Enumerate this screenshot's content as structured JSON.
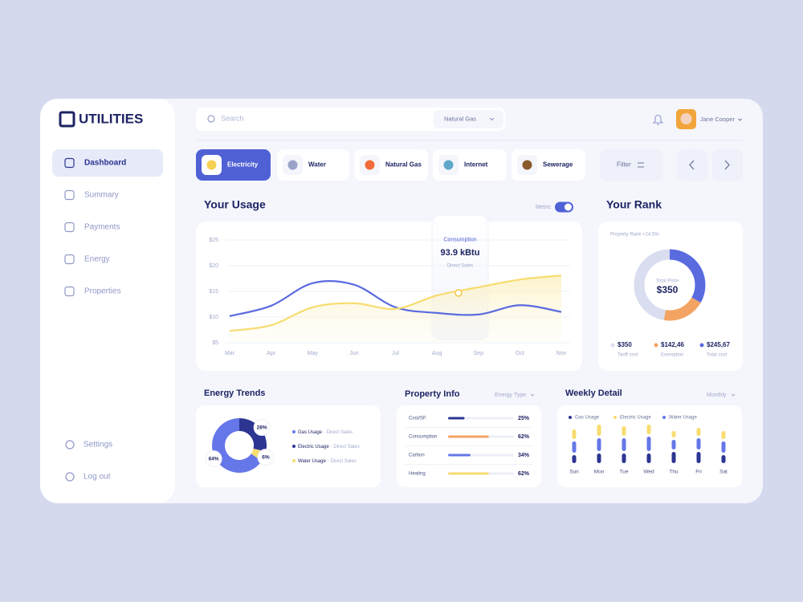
{
  "brand": "UTILITIES",
  "nav": [
    "Dashboard",
    "Summary",
    "Payments",
    "Energy",
    "Properties"
  ],
  "nav_footer": [
    "Settings",
    "Log out"
  ],
  "search": {
    "placeholder": "Search",
    "dropdown": "Natural Gas"
  },
  "user": {
    "name": "Jane Cooper"
  },
  "tabs": [
    "Electricity",
    "Water",
    "Natural Gas",
    "Internet",
    "Sewerage"
  ],
  "filter": "Filter",
  "usage": {
    "title": "Your Usage",
    "toggle": "Metric",
    "tooltip": {
      "title": "Consumption",
      "value": "93.9 kBtu",
      "subtitle": "Direct Sales"
    },
    "chart_data": {
      "type": "line",
      "categories": [
        "Mar",
        "Apr",
        "May",
        "Jun",
        "Jul",
        "Aug",
        "Sep",
        "Oct",
        "Nov"
      ],
      "series": [
        {
          "color": "#5a6be0",
          "values": [
            10.2,
            12.2,
            16.6,
            16.3,
            11.9,
            10.8,
            10.5,
            12.3,
            11.0
          ]
        },
        {
          "color": "#f7dc6f",
          "values": [
            7.3,
            8.4,
            11.9,
            12.7,
            11.6,
            14.2,
            15.8,
            17.3,
            18.1
          ]
        }
      ],
      "ylim": [
        5,
        25
      ],
      "yticks": [
        {
          "value": 25,
          "label": "$25"
        },
        {
          "value": 20,
          "label": "$20"
        },
        {
          "value": 15,
          "label": "$15"
        },
        {
          "value": 10,
          "label": "$10"
        },
        {
          "value": 5,
          "label": "$5"
        }
      ],
      "grid": true
    }
  },
  "rank": {
    "title": "Your Rank",
    "subtitle": "Property Rank +24.5%",
    "center_label": "Total Price",
    "center_value": "$350",
    "chart_data": {
      "type": "donut",
      "categories": [
        "Tariff cost",
        "Exemption",
        "Total cost"
      ],
      "values": [
        350,
        142.46,
        245.67
      ],
      "value_labels": [
        "$350",
        "$142,46",
        "$245,67"
      ],
      "colors": [
        "#d9ddef",
        "#f4a462",
        "#5a6be0"
      ]
    }
  },
  "trends": {
    "title": "Energy Trends",
    "chart_data": {
      "type": "donut",
      "categories": [
        "Gas Usage",
        "Electric Usage",
        "Water Usage"
      ],
      "legend_notes": [
        "- Direct Sales",
        "- Direct Sales",
        "- Direct Sales"
      ],
      "values": [
        64,
        28,
        6
      ],
      "value_labels": [
        "64%",
        "28%",
        "6%"
      ],
      "colors": [
        "#6577e8",
        "#2c3592",
        "#f7dc6f"
      ]
    }
  },
  "property": {
    "title": "Property Info",
    "menu": "Energy Type",
    "chart_data": {
      "type": "bar",
      "categories": [
        "Cost/SF",
        "Consumption",
        "Carbon",
        "Heating"
      ],
      "values": [
        25,
        62,
        34,
        62
      ],
      "value_labels": [
        "25%",
        "62%",
        "34%",
        "62%"
      ],
      "colors": [
        "#2c3592",
        "#f4a462",
        "#6577e8",
        "#f7dc6f"
      ],
      "xlim": [
        0,
        100
      ]
    }
  },
  "weekly": {
    "title": "Weekly Detail",
    "menu": "Monthly",
    "chart_data": {
      "type": "stacked-bar",
      "categories": [
        "Sun",
        "Mon",
        "Tue",
        "Wed",
        "Thu",
        "Fri",
        "Sat"
      ],
      "series": [
        {
          "name": "Gas Usage",
          "color": "#2c3592",
          "values": [
            10,
            12,
            12,
            12,
            14,
            14,
            10
          ]
        },
        {
          "name": "Electric Usage",
          "color": "#f7dc6f",
          "values": [
            12,
            14,
            12,
            12,
            8,
            10,
            10
          ]
        },
        {
          "name": "Water Usage",
          "color": "#6577e8",
          "values": [
            14,
            16,
            16,
            18,
            12,
            14,
            14
          ]
        }
      ]
    }
  }
}
